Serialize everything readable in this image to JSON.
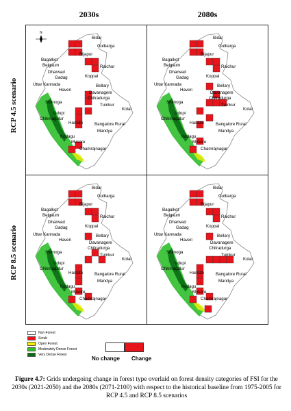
{
  "columns": [
    "2030s",
    "2080s"
  ],
  "rows": [
    "RCP 4.5 scenario",
    "RCP 8.5 scenario"
  ],
  "north_label": "N",
  "place_labels": [
    "Bidar",
    "Gulbarga",
    "Bijapur",
    "Bagalkot",
    "Belgaum",
    "Raichur",
    "Dharwad",
    "Koppal",
    "Gadag",
    "Uttar Kannada",
    "Bellary",
    "Haveri",
    "Davanagere",
    "Chitradurga",
    "Shimoga",
    "Tumkur",
    "Kolar",
    "Udupi",
    "Chikmagalur",
    "Hassan",
    "Bangalore Rural",
    "Mandya",
    "Kodagu",
    "Mysore",
    "Chamrajnagar"
  ],
  "legend": {
    "items": [
      {
        "label": "Non Forest",
        "color": "#ffffff"
      },
      {
        "label": "Scrub",
        "color": "#e8141b"
      },
      {
        "label": "Open Forest",
        "color": "#f4f000"
      },
      {
        "label": "Moderately Dense Forest",
        "color": "#2fbf2c"
      },
      {
        "label": "Very Dense Forest",
        "color": "#0b6b14"
      }
    ],
    "no_change_label": "No change",
    "change_label": "Change",
    "no_change_color": "#ffffff",
    "change_color": "#e8141b"
  },
  "caption": {
    "prefix": "Figure 4.7:",
    "text": " Grids undergoing change in forest type overlaid on forest density categories of FSI for the 2030s (2021-2050) and the 2080s (2071-2100) with respect to the historical baseline from 1975-2005 for RCP 4.5 and RCP 8.5 scenarios"
  }
}
